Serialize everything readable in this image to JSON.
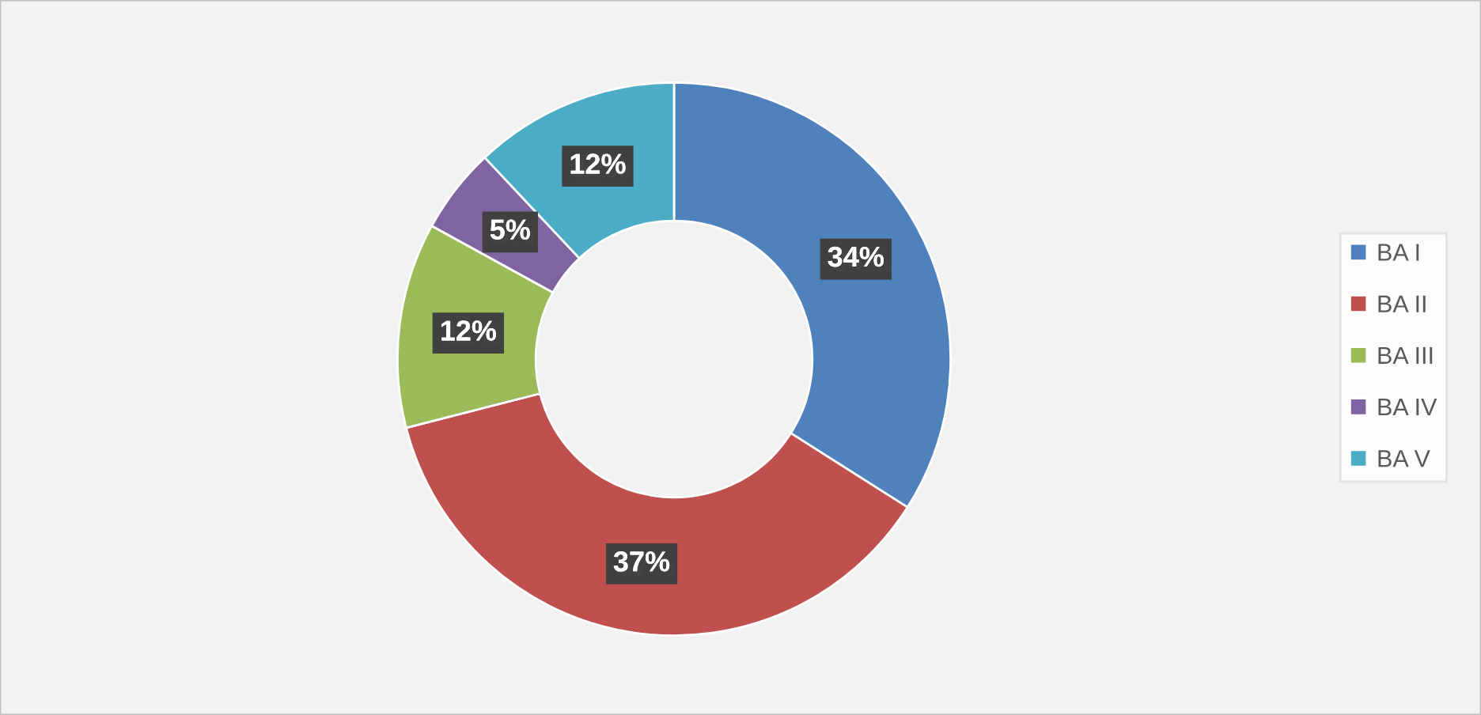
{
  "chart_data": {
    "type": "donut",
    "categories": [
      "BA I",
      "BA II",
      "BA III",
      "BA IV",
      "BA V"
    ],
    "values": [
      34,
      37,
      12,
      5,
      12
    ],
    "colors": [
      "#4f81bd",
      "#c0504d",
      "#9bbb59",
      "#8064a2",
      "#4bacc6"
    ],
    "value_labels": [
      "34%",
      "37%",
      "12%",
      "5%",
      "12%"
    ],
    "legend": "right"
  }
}
